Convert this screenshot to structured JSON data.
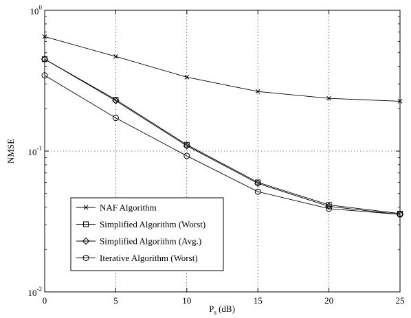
{
  "chart_data": {
    "type": "line",
    "xlabel": "P",
    "xlabel_sub": "s",
    "xlabel_unit": " (dB)",
    "ylabel": "NMSE",
    "x": [
      0,
      5,
      10,
      15,
      20,
      25
    ],
    "xlim": [
      0,
      25
    ],
    "xticks": [
      "0",
      "5",
      "10",
      "15",
      "20",
      "25"
    ],
    "yscale": "log",
    "ylim": [
      0.01,
      1
    ],
    "yticks": [
      {
        "value": 1,
        "base": "10",
        "exp": "0"
      },
      {
        "value": 0.1,
        "base": "10",
        "exp": "-1"
      },
      {
        "value": 0.01,
        "base": "10",
        "exp": "-2"
      }
    ],
    "grid": true,
    "legend_position": "bottom-left",
    "series": [
      {
        "name": "NAF Algorithm",
        "marker": "x",
        "values": [
          0.65,
          0.47,
          0.335,
          0.265,
          0.237,
          0.226
        ]
      },
      {
        "name": "Simplified Algorithm (Worst)",
        "marker": "square",
        "values": [
          0.45,
          0.232,
          0.111,
          0.06,
          0.0415,
          0.036
        ]
      },
      {
        "name": "Simplified Algorithm (Avg.)",
        "marker": "diamond",
        "values": [
          0.45,
          0.228,
          0.109,
          0.059,
          0.0405,
          0.0355
        ]
      },
      {
        "name": "Iterative Algorithm (Worst)",
        "marker": "circle",
        "values": [
          0.345,
          0.172,
          0.0925,
          0.0515,
          0.039,
          0.0355
        ]
      }
    ]
  }
}
